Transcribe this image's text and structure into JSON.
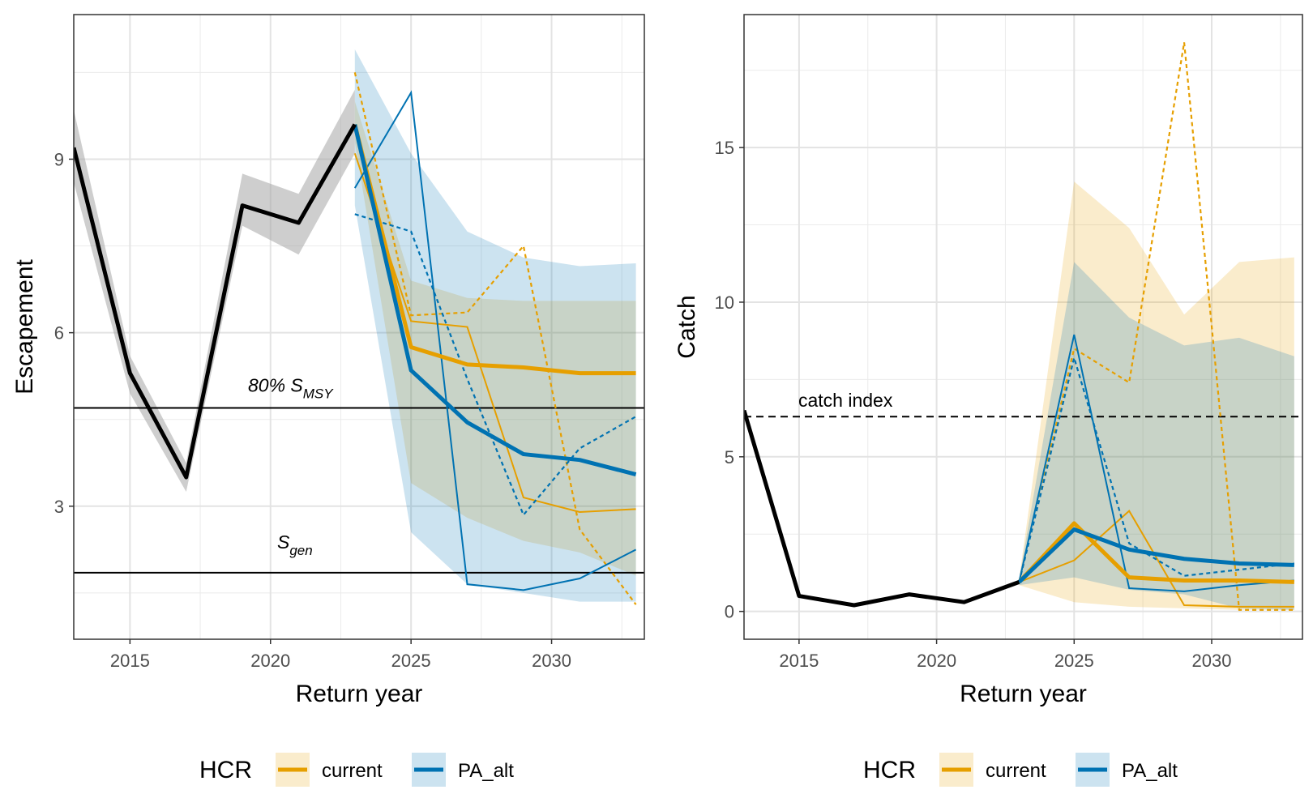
{
  "colors": {
    "current": "#E69F00",
    "PA_alt": "#0072B2",
    "observed": "#000000",
    "ci_grey": "#a6a6a6"
  },
  "chart_data": [
    {
      "type": "line",
      "xlabel": "Return year",
      "ylabel": "Escapement",
      "xlim": [
        2013,
        2033.3
      ],
      "ylim": [
        0.7,
        11.5
      ],
      "x_ticks": [
        2015,
        2020,
        2025,
        2030
      ],
      "y_ticks": [
        3,
        6,
        9
      ],
      "grid": true,
      "observed": {
        "x": [
          2013,
          2015,
          2017,
          2019,
          2021,
          2023
        ],
        "y": [
          9.2,
          5.3,
          3.5,
          8.2,
          7.9,
          9.6
        ],
        "lo": [
          8.6,
          4.95,
          3.25,
          7.85,
          7.35,
          9.1
        ],
        "hi": [
          9.85,
          5.6,
          3.75,
          8.75,
          8.4,
          10.2
        ]
      },
      "reference_lines": [
        {
          "y": 4.7,
          "label_main": "80% S",
          "label_sub": "MSY",
          "style": "solid"
        },
        {
          "y": 1.85,
          "label_main": "S",
          "label_sub": "gen",
          "style": "solid"
        }
      ],
      "series": [
        {
          "name": "current",
          "x": [
            2023,
            2025,
            2027,
            2029,
            2031,
            2033
          ],
          "median": [
            9.6,
            5.75,
            5.45,
            5.4,
            5.3,
            5.3
          ],
          "lo": [
            9.3,
            3.4,
            2.8,
            2.4,
            2.2,
            1.8
          ],
          "hi": [
            10.0,
            6.9,
            6.6,
            6.55,
            6.55,
            6.55
          ],
          "trajectories": [
            {
              "style": "solid",
              "y": [
                9.1,
                6.2,
                6.1,
                3.15,
                2.9,
                2.95
              ]
            },
            {
              "style": "dashed",
              "y": [
                10.5,
                6.3,
                6.35,
                7.5,
                2.6,
                1.3
              ]
            }
          ]
        },
        {
          "name": "PA_alt",
          "x": [
            2023,
            2025,
            2027,
            2029,
            2031,
            2033
          ],
          "median": [
            9.6,
            5.35,
            4.45,
            3.9,
            3.8,
            3.55
          ],
          "lo": [
            8.2,
            2.55,
            1.65,
            1.5,
            1.35,
            1.35
          ],
          "hi": [
            10.9,
            9.1,
            7.75,
            7.3,
            7.15,
            7.2
          ],
          "trajectories": [
            {
              "style": "solid",
              "y": [
                8.5,
                10.15,
                1.65,
                1.55,
                1.75,
                2.25
              ]
            },
            {
              "style": "dashed",
              "y": [
                8.05,
                7.75,
                5.2,
                2.85,
                4.0,
                4.55
              ]
            }
          ]
        }
      ]
    },
    {
      "type": "line",
      "xlabel": "Return year",
      "ylabel": "Catch",
      "xlim": [
        2013,
        2033.3
      ],
      "ylim": [
        -0.9,
        19.3
      ],
      "x_ticks": [
        2015,
        2020,
        2025,
        2030
      ],
      "y_ticks": [
        0,
        5,
        10,
        15
      ],
      "grid": true,
      "observed": {
        "x": [
          2013,
          2015,
          2017,
          2019,
          2021,
          2023
        ],
        "y": [
          6.5,
          0.5,
          0.2,
          0.55,
          0.3,
          0.95
        ]
      },
      "reference_lines": [
        {
          "y": 6.3,
          "label_main": "catch index",
          "label_sub": "",
          "style": "dashed"
        }
      ],
      "series": [
        {
          "name": "current",
          "x": [
            2023,
            2025,
            2027,
            2029,
            2031,
            2033
          ],
          "median": [
            0.95,
            2.85,
            1.1,
            1.0,
            1.0,
            0.95
          ],
          "lo": [
            0.85,
            0.3,
            0.15,
            0.1,
            0.05,
            0.05
          ],
          "hi": [
            1.05,
            13.9,
            12.4,
            9.6,
            11.3,
            11.45
          ],
          "trajectories": [
            {
              "style": "solid",
              "y": [
                0.95,
                1.65,
                3.25,
                0.2,
                0.15,
                0.15
              ]
            },
            {
              "style": "dashed",
              "y": [
                0.95,
                8.5,
                7.4,
                18.4,
                0.05,
                0.05
              ]
            }
          ]
        },
        {
          "name": "PA_alt",
          "x": [
            2023,
            2025,
            2027,
            2029,
            2031,
            2033
          ],
          "median": [
            0.95,
            2.65,
            2.0,
            1.7,
            1.55,
            1.5
          ],
          "lo": [
            0.85,
            1.1,
            0.7,
            0.55,
            0.1,
            0.05
          ],
          "hi": [
            1.05,
            11.3,
            9.5,
            8.6,
            8.85,
            8.25
          ],
          "trajectories": [
            {
              "style": "solid",
              "y": [
                0.95,
                8.95,
                0.75,
                0.65,
                0.85,
                1.0
              ]
            },
            {
              "style": "dashed",
              "y": [
                0.95,
                8.2,
                2.2,
                1.15,
                1.35,
                1.55
              ]
            }
          ]
        }
      ]
    }
  ],
  "legend": {
    "title": "HCR",
    "items": [
      {
        "key": "current",
        "label": "current"
      },
      {
        "key": "PA_alt",
        "label": "PA_alt"
      }
    ]
  }
}
